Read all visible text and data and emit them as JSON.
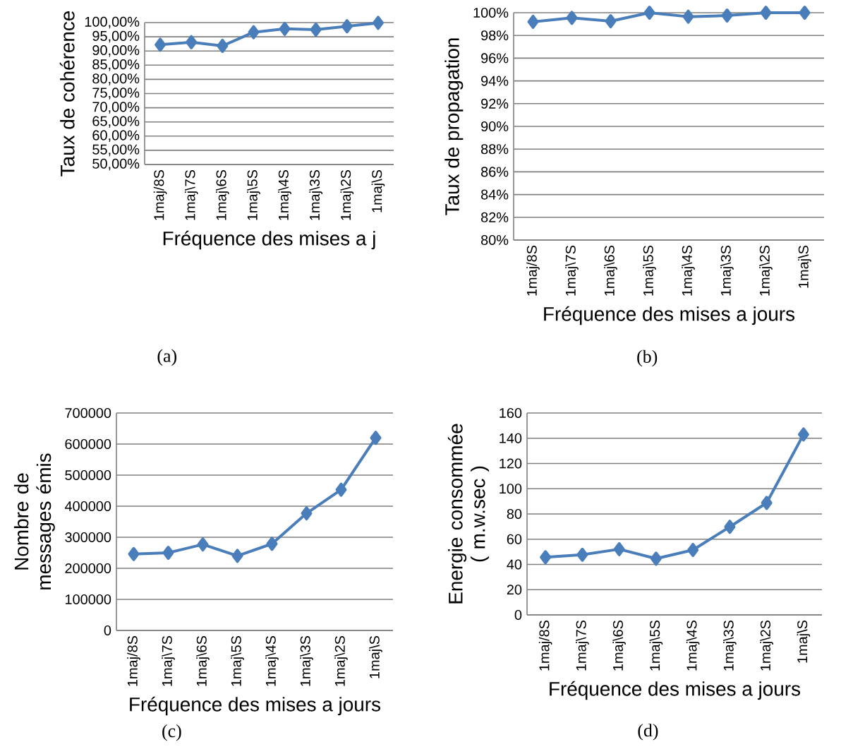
{
  "chart_data": [
    {
      "type": "line",
      "xlabel": "Fréquence des mises a j",
      "ylabel": "Taux de cohérence",
      "categories": [
        "1maj/8S",
        "1maj\\7S",
        "1maj\\6S",
        "1maj\\5S",
        "1maj\\4S",
        "1maj\\3S",
        "1maj\\2S",
        "1maj\\S"
      ],
      "values": [
        92.2,
        93.1,
        91.8,
        96.6,
        97.8,
        97.5,
        98.7,
        99.9
      ],
      "color": "#4a7ebb",
      "marker": "diamond",
      "grid": "y",
      "ylim": [
        50,
        100
      ],
      "yticks": [
        {
          "value": 50,
          "label": "50,00%"
        },
        {
          "value": 55,
          "label": "55,00%"
        },
        {
          "value": 60,
          "label": "60,00%"
        },
        {
          "value": 65,
          "label": "65,00%"
        },
        {
          "value": 70,
          "label": "70,00%"
        },
        {
          "value": 75,
          "label": "75,00%"
        },
        {
          "value": 80,
          "label": "80,00%"
        },
        {
          "value": 85,
          "label": "85,00%"
        },
        {
          "value": 90,
          "label": "90,00%"
        },
        {
          "value": 95,
          "label": "95,00%"
        },
        {
          "value": 100,
          "label": "100,00%"
        }
      ],
      "annotations": [
        "(a)"
      ]
    },
    {
      "type": "line",
      "xlabel": "Fréquence des mises a jours",
      "ylabel": "Taux de propagation",
      "categories": [
        "1maj/8S",
        "1maj\\7S",
        "1maj\\6S",
        "1maj\\5S",
        "1maj\\4S",
        "1maj\\3S",
        "1maj\\2S",
        "1maj\\S"
      ],
      "values": [
        99.2,
        99.55,
        99.25,
        100,
        99.65,
        99.75,
        100,
        100
      ],
      "color": "#4a7ebb",
      "marker": "diamond",
      "grid": "y",
      "ylim": [
        80,
        100
      ],
      "yticks": [
        {
          "value": 80,
          "label": "80%"
        },
        {
          "value": 82,
          "label": "82%"
        },
        {
          "value": 84,
          "label": "84%"
        },
        {
          "value": 86,
          "label": "86%"
        },
        {
          "value": 88,
          "label": "88%"
        },
        {
          "value": 90,
          "label": "90%"
        },
        {
          "value": 92,
          "label": "92%"
        },
        {
          "value": 94,
          "label": "94%"
        },
        {
          "value": 96,
          "label": "96%"
        },
        {
          "value": 98,
          "label": "98%"
        },
        {
          "value": 100,
          "label": "100%"
        }
      ],
      "annotations": [
        "(b)"
      ]
    },
    {
      "type": "line",
      "xlabel": "Fréquence des mises a jours",
      "ylabel": "Nombre de messages émis",
      "categories": [
        "1maj/8S",
        "1maj\\7S",
        "1maj\\6S",
        "1maj\\5S",
        "1maj\\4S",
        "1maj\\3S",
        "1maj\\2S",
        "1maj\\S"
      ],
      "values": [
        246000,
        250000,
        277000,
        240000,
        279000,
        377000,
        453000,
        620000
      ],
      "color": "#4a7ebb",
      "marker": "diamond",
      "grid": "y",
      "ylim": [
        0,
        700000
      ],
      "yticks": [
        0,
        100000,
        200000,
        300000,
        400000,
        500000,
        600000,
        700000
      ],
      "annotations": [
        "(c)"
      ]
    },
    {
      "type": "line",
      "xlabel": "Fréquence des mises a jours",
      "ylabel": "Energie consommée ( m.w.sec )",
      "categories": [
        "1maj/8S",
        "1maj\\7S",
        "1maj\\6S",
        "1maj\\5S",
        "1maj\\4S",
        "1maj\\3S",
        "1maj\\2S",
        "1maj\\S"
      ],
      "values": [
        45.7,
        47.7,
        52.1,
        44.6,
        51.5,
        69.8,
        88.8,
        143
      ],
      "color": "#4a7ebb",
      "marker": "diamond",
      "grid": "y",
      "ylim": [
        0,
        160
      ],
      "yticks": [
        0,
        20,
        40,
        60,
        80,
        100,
        120,
        140,
        160
      ],
      "annotations": [
        "(d)"
      ]
    }
  ]
}
